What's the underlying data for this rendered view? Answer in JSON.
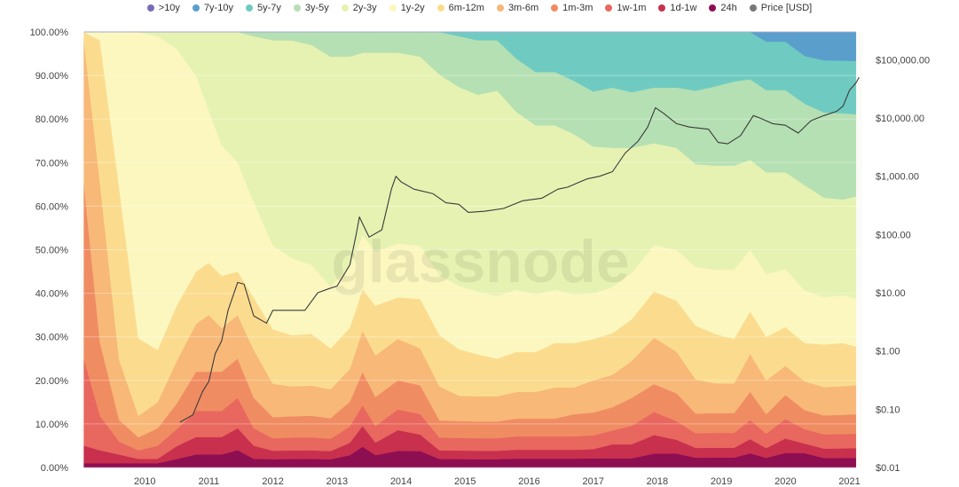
{
  "chart_data": {
    "type": "area",
    "stacked": true,
    "normalized": true,
    "watermark": "glassnode",
    "legend_position": "top-center",
    "grid": true,
    "x_ticks": [
      "2010",
      "2011",
      "2012",
      "2013",
      "2014",
      "2015",
      "2016",
      "2017",
      "2018",
      "2019",
      "2020",
      "2021"
    ],
    "x_range": [
      2009.0,
      2021.2
    ],
    "ylim_left": [
      0,
      100
    ],
    "y_ticks_left": [
      "0.00%",
      "10.00%",
      "20.00%",
      "30.00%",
      "40.00%",
      "50.00%",
      "60.00%",
      "70.00%",
      "80.00%",
      "90.00%",
      "100.00%"
    ],
    "y_scale_right": "log",
    "ylim_right": [
      0.01,
      300000
    ],
    "y_ticks_right": [
      "$0.01",
      "$0.10",
      "$1.00",
      "$10.00",
      "$100.00",
      "$1,000.00",
      "$10,000.00",
      "$100,000.00"
    ],
    "y_ticks_right_values": [
      0.01,
      0.1,
      1,
      10,
      100,
      1000,
      10000,
      100000
    ],
    "x": [
      2009.05,
      2009.3,
      2009.6,
      2009.9,
      2010.2,
      2010.5,
      2010.8,
      2011.0,
      2011.2,
      2011.45,
      2011.7,
      2012.0,
      2012.3,
      2012.6,
      2012.9,
      2013.2,
      2013.4,
      2013.6,
      2013.95,
      2014.3,
      2014.6,
      2014.9,
      2015.2,
      2015.5,
      2015.8,
      2016.1,
      2016.4,
      2016.7,
      2017.0,
      2017.3,
      2017.6,
      2017.95,
      2018.3,
      2018.6,
      2018.9,
      2019.2,
      2019.45,
      2019.7,
      2020.0,
      2020.3,
      2020.6,
      2020.9,
      2021.1
    ],
    "series": [
      {
        "name": "24h",
        "color": "#8e0e52",
        "values": [
          1,
          1,
          1,
          1,
          1,
          2,
          3,
          3,
          3,
          4,
          2,
          2,
          2,
          2,
          2,
          3,
          5,
          3,
          4,
          4,
          2,
          2,
          2,
          2,
          2,
          2,
          2,
          2,
          2,
          2,
          2,
          3,
          3,
          2,
          2,
          2,
          3,
          2,
          3,
          3,
          2,
          2,
          2
        ]
      },
      {
        "name": "1d-1w",
        "color": "#c8304e",
        "values": [
          4,
          3,
          2,
          1,
          1,
          3,
          4,
          4,
          4,
          5,
          3,
          2,
          2,
          2,
          2,
          3,
          5,
          3,
          5,
          4,
          2,
          2,
          2,
          2,
          2,
          2,
          2,
          2,
          2,
          3,
          3,
          4,
          3,
          2,
          2,
          2,
          3,
          2,
          3,
          2,
          2,
          2,
          2
        ]
      },
      {
        "name": "1w-1m",
        "color": "#e8675e",
        "values": [
          20,
          8,
          3,
          2,
          3,
          4,
          6,
          6,
          6,
          7,
          4,
          3,
          3,
          3,
          3,
          4,
          5,
          4,
          5,
          5,
          3,
          3,
          3,
          3,
          3,
          3,
          3,
          3,
          3,
          3,
          4,
          5,
          4,
          3,
          3,
          3,
          4,
          3,
          4,
          3,
          3,
          3,
          3
        ]
      },
      {
        "name": "1m-3m",
        "color": "#f08c62",
        "values": [
          40,
          17,
          5,
          3,
          4,
          6,
          9,
          9,
          9,
          9,
          7,
          5,
          5,
          5,
          5,
          6,
          8,
          7,
          7,
          7,
          4,
          4,
          4,
          4,
          4,
          4,
          4,
          5,
          5,
          5,
          6,
          6,
          6,
          4,
          4,
          4,
          6,
          4,
          5,
          4,
          4,
          4,
          4
        ]
      },
      {
        "name": "3m-6m",
        "color": "#f7b878",
        "values": [
          33,
          37,
          14,
          5,
          6,
          10,
          11,
          13,
          10,
          10,
          11,
          8,
          7,
          7,
          7,
          8,
          10,
          10,
          10,
          9,
          8,
          6,
          6,
          6,
          6,
          6,
          7,
          6,
          7,
          7,
          8,
          10,
          9,
          7,
          6,
          6,
          8,
          7,
          6,
          6,
          6,
          6,
          6
        ]
      },
      {
        "name": "6m-12m",
        "color": "#fbdc8f",
        "values": [
          2,
          33,
          40,
          18,
          12,
          13,
          12,
          12,
          12,
          10,
          12,
          13,
          12,
          12,
          10,
          10,
          10,
          12,
          10,
          12,
          12,
          11,
          10,
          9,
          9,
          9,
          10,
          10,
          9,
          9,
          9,
          10,
          11,
          11,
          10,
          9,
          9,
          9,
          8,
          8,
          9,
          9,
          8
        ]
      },
      {
        "name": "1y-2y",
        "color": "#fbf7bf",
        "values": [
          0,
          2,
          36,
          71,
          72,
          60,
          45,
          35,
          30,
          25,
          22,
          20,
          18,
          16,
          15,
          15,
          13,
          13,
          13,
          13,
          14,
          15,
          15,
          15,
          14,
          13,
          12,
          11,
          10,
          10,
          10,
          10,
          11,
          12,
          13,
          14,
          13,
          13,
          12,
          11,
          10,
          10,
          10
        ]
      },
      {
        "name": "2y-3y",
        "color": "#e6f2b2",
        "values": [
          0,
          0,
          0,
          0,
          1,
          4,
          10,
          18,
          26,
          30,
          38,
          49,
          51,
          51,
          56,
          51,
          44,
          48,
          46,
          46,
          47,
          47,
          47,
          49,
          40,
          38,
          37,
          36,
          32,
          30,
          27,
          22,
          22,
          21,
          21,
          21,
          19,
          21,
          20,
          22,
          21,
          20,
          21
        ]
      },
      {
        "name": "3y-5y",
        "color": "#b5e0b3",
        "values": [
          0,
          0,
          0,
          0,
          0,
          0,
          0,
          0,
          0,
          0,
          1,
          2,
          2,
          3,
          6,
          6,
          5,
          5,
          5,
          6,
          10,
          12,
          13,
          12,
          12,
          12,
          12,
          12,
          12,
          13,
          12,
          12,
          13,
          15,
          16,
          17,
          17,
          17,
          17,
          17,
          18,
          18,
          17
        ]
      },
      {
        "name": "5y-7y",
        "color": "#6fcbc1",
        "values": [
          0,
          0,
          0,
          0,
          0,
          0,
          0,
          0,
          0,
          0,
          0,
          0,
          0,
          0,
          0,
          0,
          0,
          0,
          0,
          0,
          0,
          1,
          2,
          2,
          6,
          9,
          9,
          11,
          13,
          12,
          13,
          12,
          12,
          12,
          11,
          10,
          10,
          10,
          10,
          10,
          11,
          11,
          11
        ]
      },
      {
        "name": "7y-10y",
        "color": "#5a9fcc",
        "values": [
          0,
          0,
          0,
          0,
          0,
          0,
          0,
          0,
          0,
          0,
          0,
          0,
          0,
          0,
          0,
          0,
          0,
          0,
          0,
          0,
          0,
          0,
          0,
          0,
          0,
          0,
          0,
          0,
          0,
          0,
          0,
          0,
          0,
          0,
          0,
          0,
          0,
          2,
          2,
          5,
          6,
          6,
          6
        ]
      },
      {
        "name": ">10y",
        "color": "#7c6ab6",
        "values": [
          0,
          0,
          0,
          0,
          0,
          0,
          0,
          0,
          0,
          0,
          0,
          0,
          0,
          0,
          0,
          0,
          0,
          0,
          0,
          0,
          0,
          0,
          0,
          0,
          0,
          0,
          0,
          0,
          0,
          0,
          0,
          0,
          0,
          0,
          0,
          0,
          0,
          0,
          0,
          0,
          0,
          0,
          0
        ]
      }
    ],
    "price": {
      "name": "Price [USD]",
      "color": "#3a3a3a",
      "x": [
        2010.55,
        2010.75,
        2010.9,
        2011.0,
        2011.1,
        2011.2,
        2011.3,
        2011.45,
        2011.55,
        2011.7,
        2011.9,
        2012.0,
        2012.2,
        2012.5,
        2012.7,
        2012.9,
        2013.0,
        2013.2,
        2013.3,
        2013.35,
        2013.5,
        2013.7,
        2013.85,
        2013.92,
        2014.0,
        2014.2,
        2014.5,
        2014.7,
        2014.9,
        2015.05,
        2015.3,
        2015.6,
        2015.9,
        2016.2,
        2016.45,
        2016.6,
        2016.9,
        2017.1,
        2017.3,
        2017.5,
        2017.7,
        2017.85,
        2017.97,
        2018.1,
        2018.3,
        2018.5,
        2018.8,
        2018.95,
        2019.1,
        2019.3,
        2019.5,
        2019.6,
        2019.8,
        2020.0,
        2020.2,
        2020.4,
        2020.6,
        2020.8,
        2020.9,
        2021.0,
        2021.1,
        2021.15
      ],
      "values": [
        0.06,
        0.08,
        0.2,
        0.3,
        0.9,
        1.5,
        5,
        15,
        14,
        4,
        3,
        5,
        5,
        5,
        10,
        12,
        13,
        30,
        100,
        200,
        90,
        120,
        600,
        1000,
        800,
        600,
        500,
        350,
        330,
        240,
        250,
        280,
        380,
        420,
        600,
        650,
        900,
        1000,
        1200,
        2500,
        4000,
        7000,
        15000,
        12000,
        8000,
        7000,
        6400,
        3800,
        3600,
        5000,
        11000,
        10000,
        8000,
        7500,
        5500,
        9000,
        11000,
        13000,
        16000,
        30000,
        40000,
        50000
      ]
    }
  }
}
